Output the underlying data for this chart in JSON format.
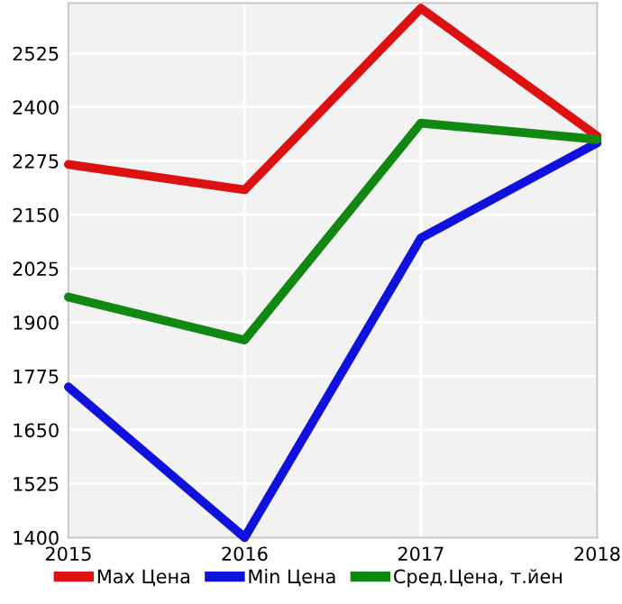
{
  "chart_data": {
    "type": "line",
    "categories": [
      "2015",
      "2016",
      "2017",
      "2018"
    ],
    "series": [
      {
        "name": "Max Цена",
        "color": "#dd1111",
        "values": [
          2267,
          2208,
          2630,
          2333
        ]
      },
      {
        "name": "Min Цена",
        "color": "#1111dd",
        "values": [
          1750,
          1400,
          2096,
          2317
        ]
      },
      {
        "name": "Сред.Цена, т.йен",
        "color": "#118811",
        "values": [
          1959,
          1859,
          2363,
          2325
        ]
      }
    ],
    "ylim": [
      1400,
      2642
    ],
    "yticks": [
      1400,
      1525,
      1650,
      1775,
      1900,
      2025,
      2150,
      2275,
      2400,
      2525
    ],
    "grid": true,
    "legend": "bottom",
    "marker": "none",
    "line_style": "solid"
  }
}
